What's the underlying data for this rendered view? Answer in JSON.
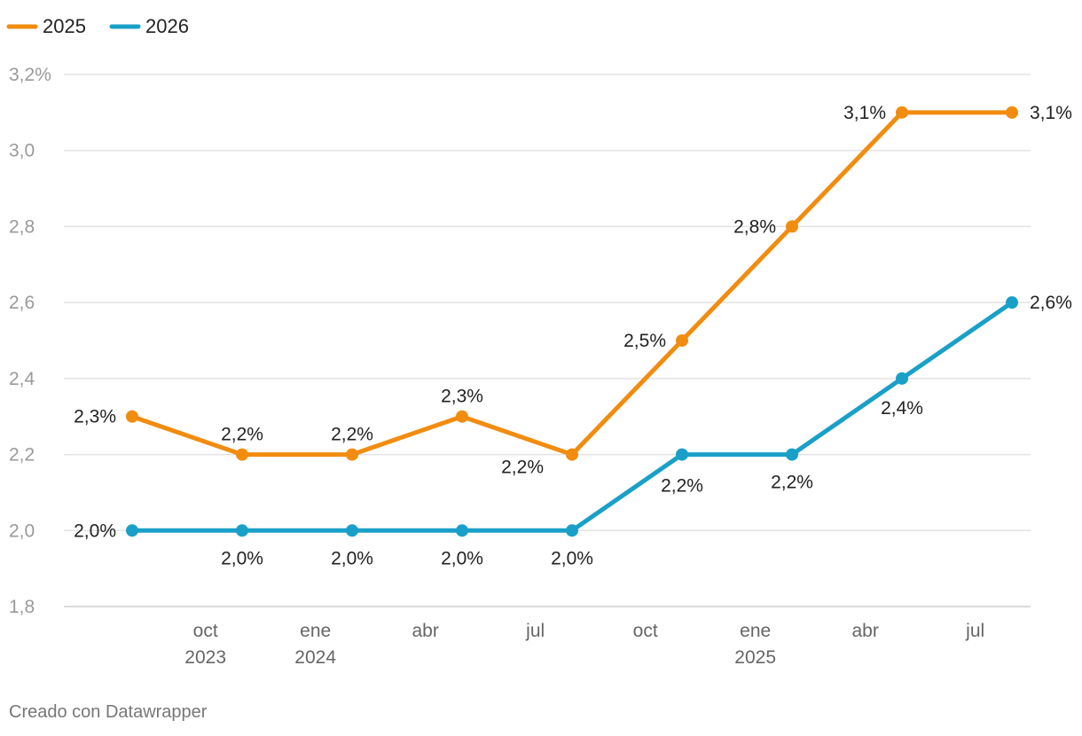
{
  "chart_data": {
    "type": "line",
    "x": [
      "2023-08",
      "2023-11",
      "2024-02",
      "2024-05",
      "2024-08",
      "2024-11",
      "2025-02",
      "2025-05",
      "2025-08"
    ],
    "xticks": [
      {
        "at": "2023-10",
        "line1": "oct",
        "line2": "2023"
      },
      {
        "at": "2024-01",
        "line1": "ene",
        "line2": "2024"
      },
      {
        "at": "2024-04",
        "line1": "abr",
        "line2": ""
      },
      {
        "at": "2024-07",
        "line1": "jul",
        "line2": ""
      },
      {
        "at": "2024-10",
        "line1": "oct",
        "line2": ""
      },
      {
        "at": "2025-01",
        "line1": "ene",
        "line2": "2025"
      },
      {
        "at": "2025-04",
        "line1": "abr",
        "line2": ""
      },
      {
        "at": "2025-07",
        "line1": "jul",
        "line2": ""
      }
    ],
    "ylim": [
      1.8,
      3.2
    ],
    "yticks": [
      {
        "value": 1.8,
        "label": "1,8"
      },
      {
        "value": 2.0,
        "label": "2,0"
      },
      {
        "value": 2.2,
        "label": "2,2"
      },
      {
        "value": 2.4,
        "label": "2,4"
      },
      {
        "value": 2.6,
        "label": "2,6"
      },
      {
        "value": 2.8,
        "label": "2,8"
      },
      {
        "value": 3.0,
        "label": "3,0"
      },
      {
        "value": 3.2,
        "label": "3,2%"
      }
    ],
    "series": [
      {
        "name": "2025",
        "color": "#f28c0f",
        "values": [
          2.3,
          2.2,
          2.2,
          2.3,
          2.2,
          2.5,
          2.8,
          3.1,
          3.1
        ],
        "labels": [
          "2,3%",
          "2,2%",
          "2,2%",
          "2,3%",
          "2,2%",
          "2,5%",
          "2,8%",
          "3,1%",
          "3,1%"
        ]
      },
      {
        "name": "2026",
        "color": "#1aa0c8",
        "values": [
          2.0,
          2.0,
          2.0,
          2.0,
          2.0,
          2.2,
          2.2,
          2.4,
          2.6
        ],
        "labels": [
          "2,0%",
          "2,0%",
          "2,0%",
          "2,0%",
          "2,0%",
          "2,2%",
          "2,2%",
          "2,4%",
          "2,6%"
        ]
      }
    ]
  },
  "footer": {
    "credit": "Creado con Datawrapper"
  }
}
